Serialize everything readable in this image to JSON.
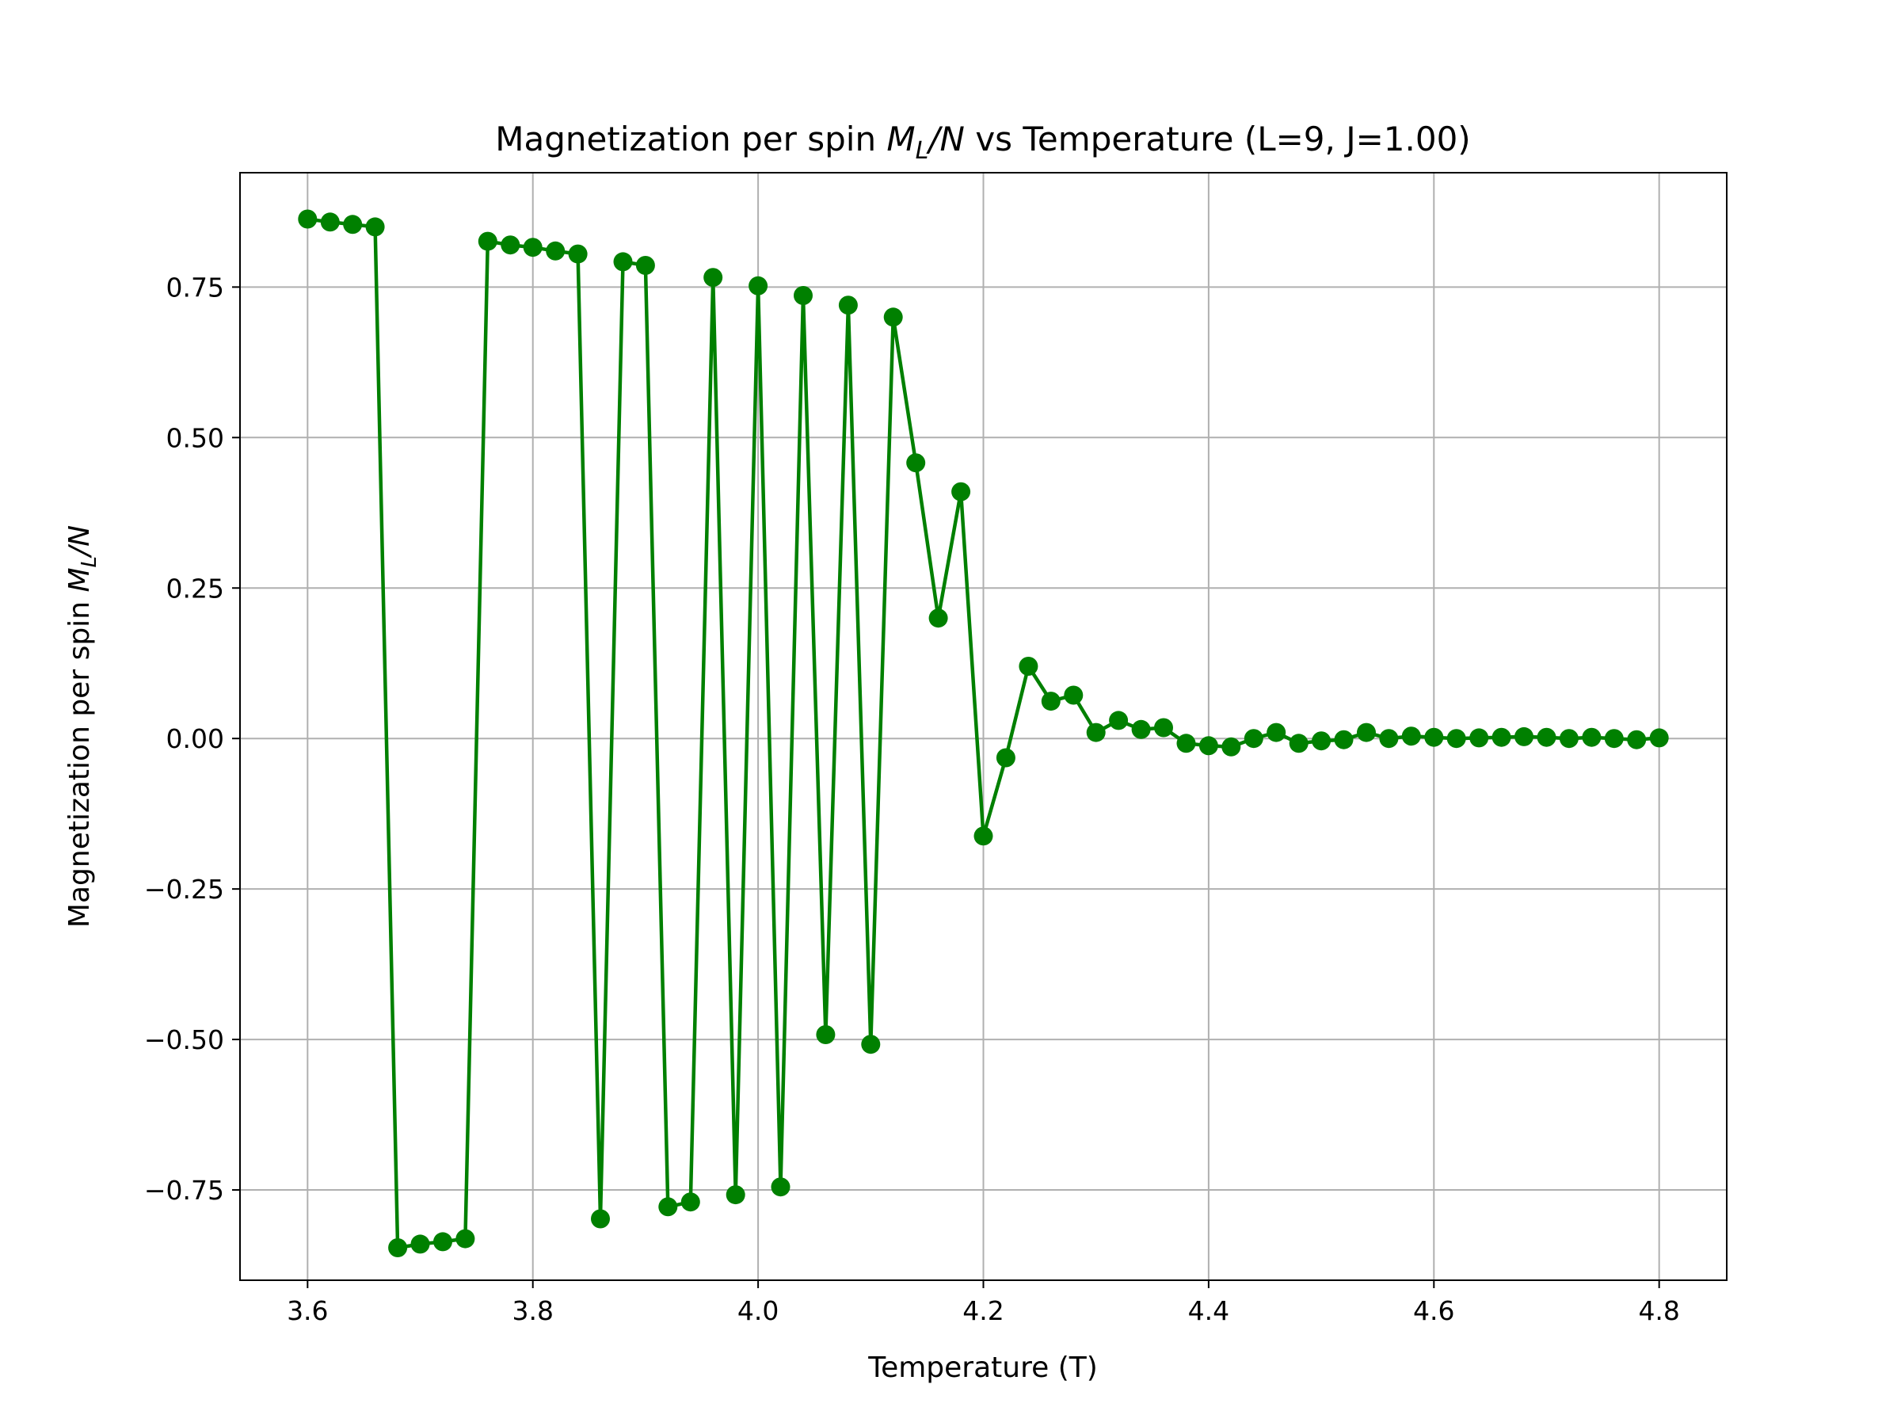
{
  "chart_data": {
    "type": "line",
    "title": "Magnetization per spin",
    "title_math": "M_L/N",
    "title_suffix": "vs Temperature (L=9, J=1.00)",
    "xlabel": "Temperature (T)",
    "ylabel": "Magnetization per spin",
    "ylabel_math": "M_L/N",
    "xlim": [
      3.54,
      4.86
    ],
    "ylim": [
      -0.9,
      0.94
    ],
    "xticks": [
      3.6,
      3.8,
      4.0,
      4.2,
      4.4,
      4.6,
      4.8
    ],
    "xtick_labels": [
      "3.6",
      "3.8",
      "4.0",
      "4.2",
      "4.4",
      "4.6",
      "4.8"
    ],
    "yticks": [
      -0.75,
      -0.5,
      -0.25,
      0.0,
      0.25,
      0.5,
      0.75
    ],
    "ytick_labels": [
      "−0.75",
      "−0.50",
      "−0.25",
      "0.00",
      "0.25",
      "0.50",
      "0.75"
    ],
    "grid": true,
    "series": [
      {
        "color": "#008000",
        "marker": "circle",
        "x": [
          3.6,
          3.62,
          3.64,
          3.66,
          3.68,
          3.7,
          3.72,
          3.74,
          3.76,
          3.78,
          3.8,
          3.82,
          3.84,
          3.86,
          3.88,
          3.9,
          3.92,
          3.94,
          3.96,
          3.98,
          4.0,
          4.02,
          4.04,
          4.06,
          4.08,
          4.1,
          4.12,
          4.14,
          4.16,
          4.18,
          4.2,
          4.22,
          4.24,
          4.26,
          4.28,
          4.3,
          4.32,
          4.34,
          4.36,
          4.38,
          4.4,
          4.42,
          4.44,
          4.46,
          4.48,
          4.5,
          4.52,
          4.54,
          4.56,
          4.58,
          4.6,
          4.62,
          4.64,
          4.66,
          4.68,
          4.7,
          4.72,
          4.74,
          4.76,
          4.78,
          4.8
        ],
        "y": [
          0.863,
          0.858,
          0.854,
          0.85,
          -0.846,
          -0.84,
          -0.836,
          -0.831,
          0.826,
          0.82,
          0.816,
          0.81,
          0.805,
          -0.798,
          0.792,
          0.786,
          -0.778,
          -0.77,
          0.766,
          -0.758,
          0.752,
          -0.745,
          0.736,
          -0.492,
          0.72,
          -0.508,
          0.7,
          0.458,
          0.2,
          0.41,
          -0.162,
          -0.032,
          0.12,
          0.062,
          0.072,
          0.01,
          0.03,
          0.015,
          0.018,
          -0.008,
          -0.012,
          -0.014,
          0.0,
          0.01,
          -0.008,
          -0.004,
          -0.002,
          0.01,
          0.0,
          0.004,
          0.002,
          0.0,
          0.001,
          0.002,
          0.003,
          0.002,
          0.0,
          0.002,
          0.0,
          -0.002,
          0.001
        ]
      }
    ]
  }
}
